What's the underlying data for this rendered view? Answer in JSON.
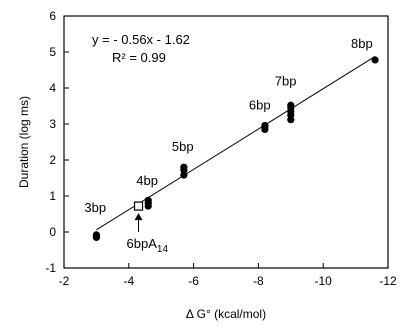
{
  "chart_data": {
    "type": "scatter",
    "xlabel": "Δ G° (kcal/mol)",
    "ylabel": "Duration (log ms)",
    "xlim": [
      -2,
      -12
    ],
    "ylim": [
      -1,
      6
    ],
    "x_ticks": [
      -2,
      -4,
      -6,
      -8,
      -10,
      -12
    ],
    "y_ticks": [
      -1,
      0,
      1,
      2,
      3,
      4,
      5,
      6
    ],
    "x_tick_labels": [
      "-2",
      "-4",
      "-6",
      "-8",
      "-10",
      "-12"
    ],
    "y_tick_labels": [
      "-1",
      "0",
      "1",
      "2",
      "3",
      "4",
      "5",
      "6"
    ],
    "x_axis_reversed": true,
    "grid": false,
    "fit": {
      "equation": "y = - 0.56x - 1.62",
      "r2": "R² = 0.99",
      "slope": -0.56,
      "intercept": -1.62,
      "x_range": [
        -3.0,
        -11.6
      ]
    },
    "points": [
      {
        "x": -3.0,
        "y": -0.08
      },
      {
        "x": -3.0,
        "y": -0.15
      },
      {
        "x": -3.0,
        "y": -0.12
      },
      {
        "x": -4.6,
        "y": 0.72
      },
      {
        "x": -4.6,
        "y": 0.8
      },
      {
        "x": -4.6,
        "y": 0.88
      },
      {
        "x": -5.7,
        "y": 1.58
      },
      {
        "x": -5.7,
        "y": 1.72
      },
      {
        "x": -5.7,
        "y": 1.8
      },
      {
        "x": -8.2,
        "y": 2.85
      },
      {
        "x": -8.2,
        "y": 2.92
      },
      {
        "x": -8.2,
        "y": 2.96
      },
      {
        "x": -9.0,
        "y": 3.12
      },
      {
        "x": -9.0,
        "y": 3.25
      },
      {
        "x": -9.0,
        "y": 3.35
      },
      {
        "x": -9.0,
        "y": 3.45
      },
      {
        "x": -9.0,
        "y": 3.52
      },
      {
        "x": -11.6,
        "y": 4.78
      }
    ],
    "open_points": [
      {
        "x": -4.3,
        "y": 0.72
      }
    ],
    "annotations": [
      {
        "text": "3bp",
        "x": -3.0,
        "y": 0.0
      },
      {
        "text": "4bp",
        "x": -4.6,
        "y": 0.8
      },
      {
        "text": "5bp",
        "x": -5.7,
        "y": 1.7
      },
      {
        "text": "6bp",
        "x": -8.2,
        "y": 2.9
      },
      {
        "text": "7bp",
        "x": -9.0,
        "y": 3.4
      },
      {
        "text": "8bp",
        "x": -11.6,
        "y": 4.78
      }
    ],
    "arrow_label": {
      "base": "6bpA",
      "subscript": "14"
    }
  }
}
